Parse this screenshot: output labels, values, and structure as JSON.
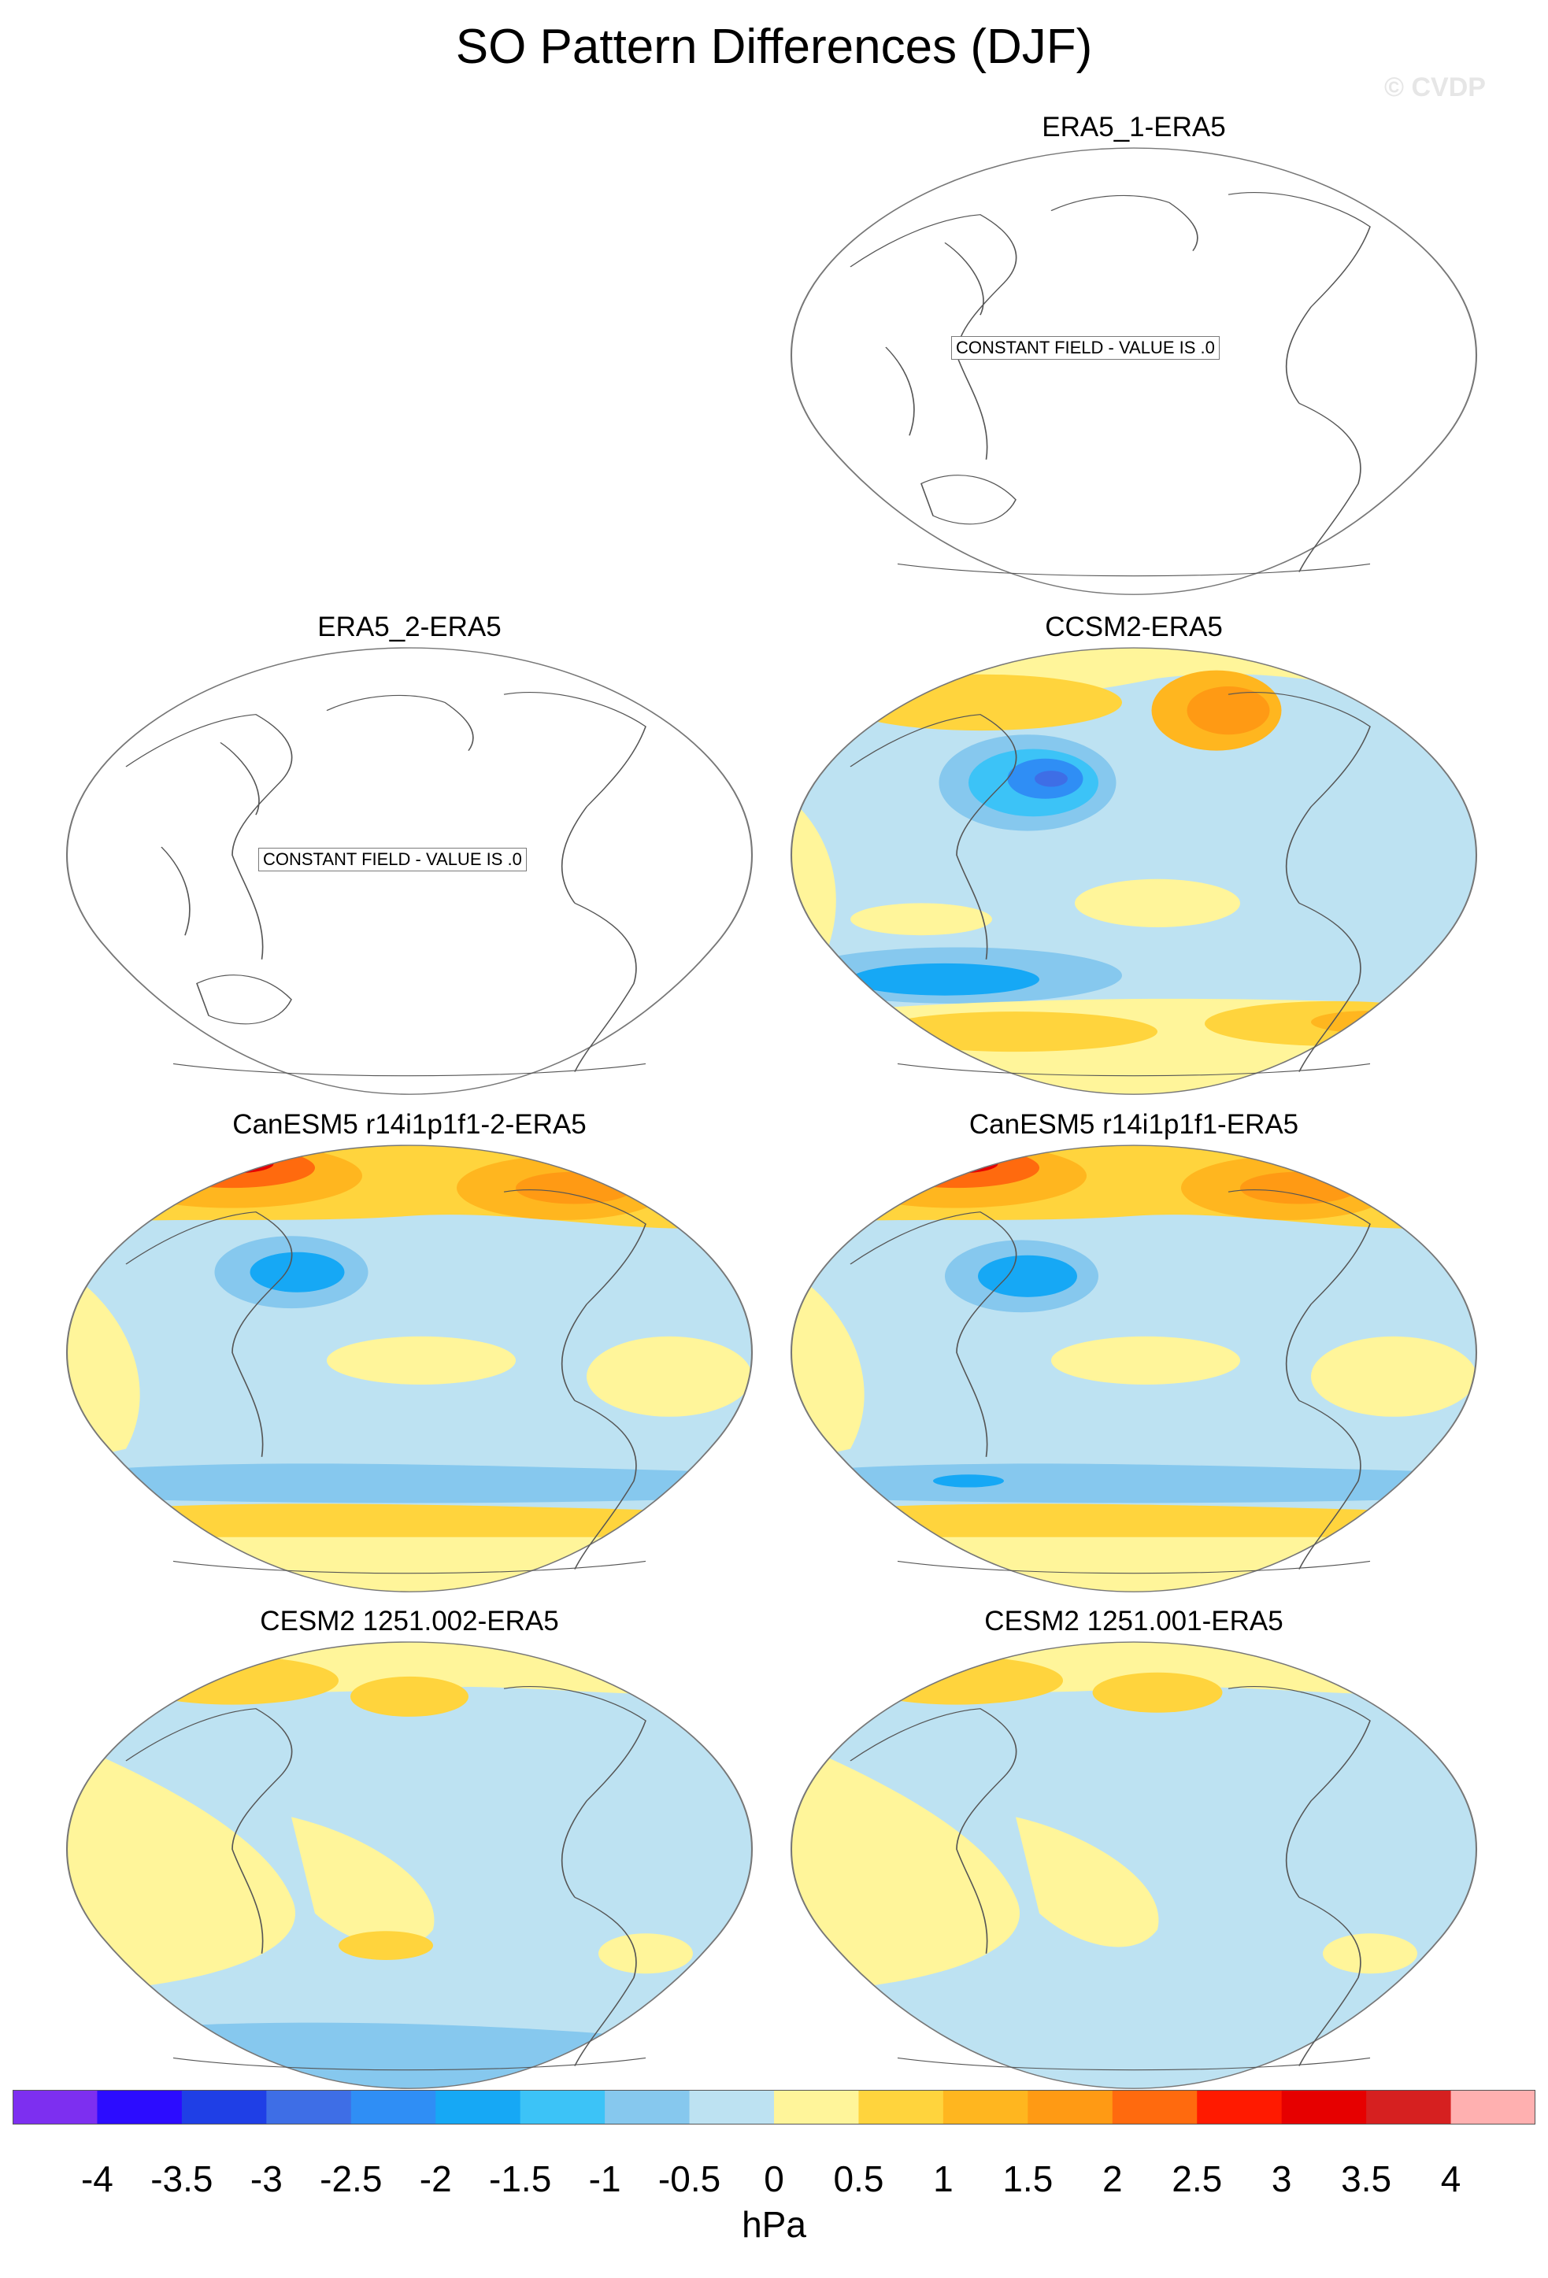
{
  "title": "SO Pattern Differences (DJF)",
  "watermark": "© CVDP",
  "constant_field_label": "CONSTANT FIELD - VALUE IS .0",
  "colors": {
    "neg4": "#7d2ff0",
    "neg35": "#2c0cff",
    "neg3": "#1f3fe6",
    "neg25": "#3e6ee6",
    "neg2": "#2f8ef5",
    "neg15": "#16a8f5",
    "neg1": "#3cc3f7",
    "neg05": "#86c8ee",
    "neg0": "#bde2f2",
    "pos0": "#fff59a",
    "pos05": "#ffd43d",
    "pos1": "#ffb61f",
    "pos15": "#ff9a14",
    "pos2": "#ff6a0e",
    "pos25": "#ff1a00",
    "pos3": "#e60000",
    "pos35": "#d62020",
    "pos4": "#ffb0b0"
  },
  "panels": [
    {
      "id": "era5-1",
      "title": "ERA5_1-ERA5",
      "constant": true
    },
    {
      "id": "era5-2",
      "title": "ERA5_2-ERA5",
      "constant": true
    },
    {
      "id": "ccsm2",
      "title": "CCSM2-ERA5",
      "constant": false
    },
    {
      "id": "canesm5-2",
      "title": "CanESM5 r14i1p1f1-2-ERA5",
      "constant": false
    },
    {
      "id": "canesm5",
      "title": "CanESM5 r14i1p1f1-ERA5",
      "constant": false
    },
    {
      "id": "cesm2-002",
      "title": "CESM2 1251.002-ERA5",
      "constant": false
    },
    {
      "id": "cesm2-001",
      "title": "CESM2 1251.001-ERA5",
      "constant": false
    }
  ],
  "colorbar": {
    "units": "hPa",
    "labels": [
      "-4",
      "-3.5",
      "-3",
      "-2.5",
      "-2",
      "-1.5",
      "-1",
      "-0.5",
      "0",
      "0.5",
      "1",
      "1.5",
      "2",
      "2.5",
      "3",
      "3.5",
      "4"
    ],
    "colors": [
      "#7d2ff0",
      "#2c0cff",
      "#1f3fe6",
      "#3e6ee6",
      "#2f8ef5",
      "#16a8f5",
      "#3cc3f7",
      "#86c8ee",
      "#bde2f2",
      "#fff59a",
      "#ffd43d",
      "#ffb61f",
      "#ff9a14",
      "#ff6a0e",
      "#ff1a00",
      "#e60000",
      "#d62020",
      "#ffb0b0"
    ]
  }
}
